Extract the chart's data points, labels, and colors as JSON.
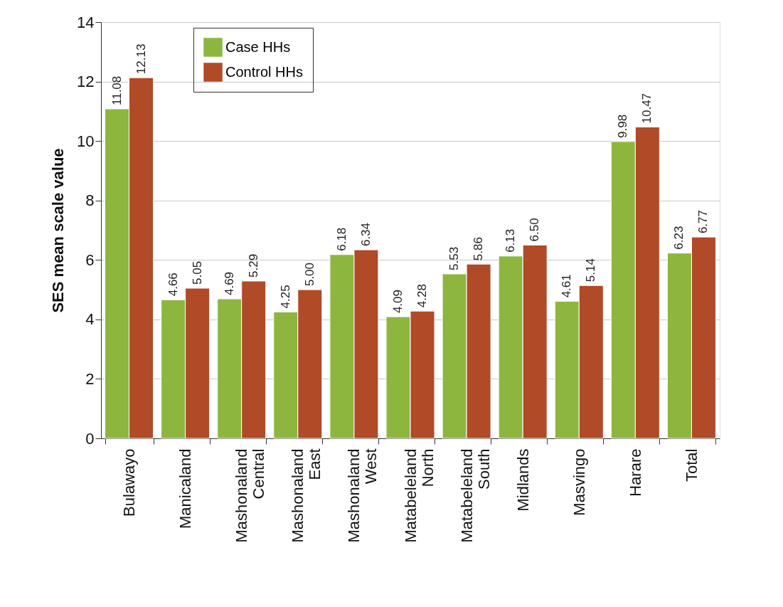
{
  "chart_data": {
    "type": "bar",
    "ylabel": "SES mean scale value",
    "categories": [
      "Bulawayo",
      "Manicaland",
      "Mashonaland Central",
      "Mashonaland East",
      "Mashonaland West",
      "Matabeleland North",
      "Matabeleland South",
      "Midlands",
      "Masvingo",
      "Harare",
      "Total"
    ],
    "series": [
      {
        "name": "Case HHs",
        "color": "#8db63f",
        "values": [
          11.08,
          4.66,
          4.69,
          4.25,
          6.18,
          4.09,
          5.53,
          6.13,
          4.61,
          9.98,
          6.23
        ],
        "value_labels": [
          "11.08",
          "4.66",
          "4.69",
          "4.25",
          "6.18",
          "4.09",
          "5.53",
          "6.13",
          "4.61",
          "9.98",
          "6.23"
        ]
      },
      {
        "name": "Control HHs",
        "color": "#b04a27",
        "values": [
          12.13,
          5.05,
          5.29,
          5.0,
          6.34,
          4.28,
          5.86,
          6.5,
          5.14,
          10.47,
          6.77
        ],
        "value_labels": [
          "12.13",
          "5.05",
          "5.29",
          "5.00",
          "6.34",
          "4.28",
          "5.86",
          "6.50",
          "5.14",
          "10.47",
          "6.77"
        ]
      }
    ],
    "ylim": [
      0,
      14
    ],
    "yticks": [
      0,
      2,
      4,
      6,
      8,
      10,
      12,
      14
    ],
    "grid": "y",
    "legend": "top left"
  }
}
